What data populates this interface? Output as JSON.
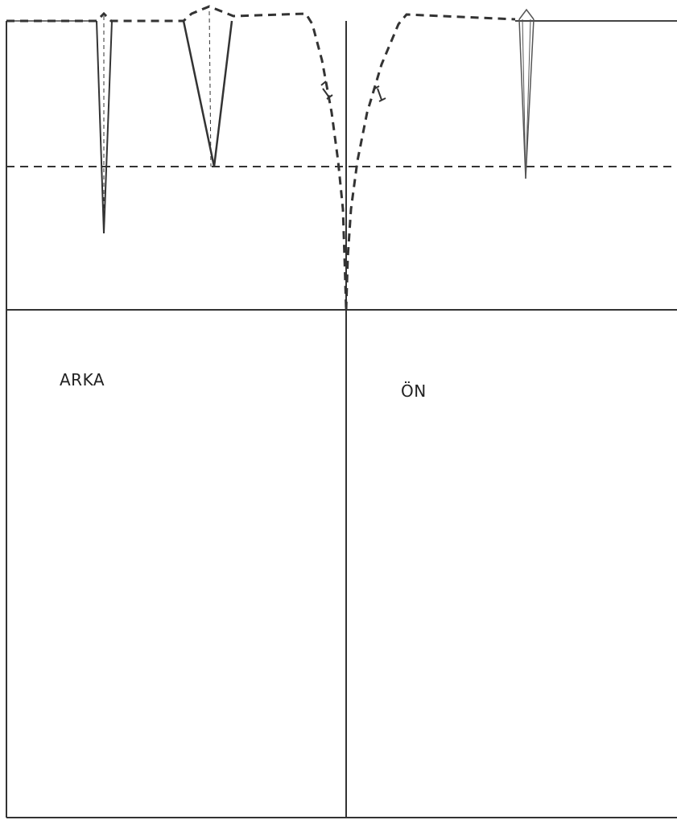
{
  "labels": {
    "back": "ARKA",
    "front": "ÖN"
  },
  "colors": {
    "line": "#333333",
    "background": "#ffffff"
  }
}
